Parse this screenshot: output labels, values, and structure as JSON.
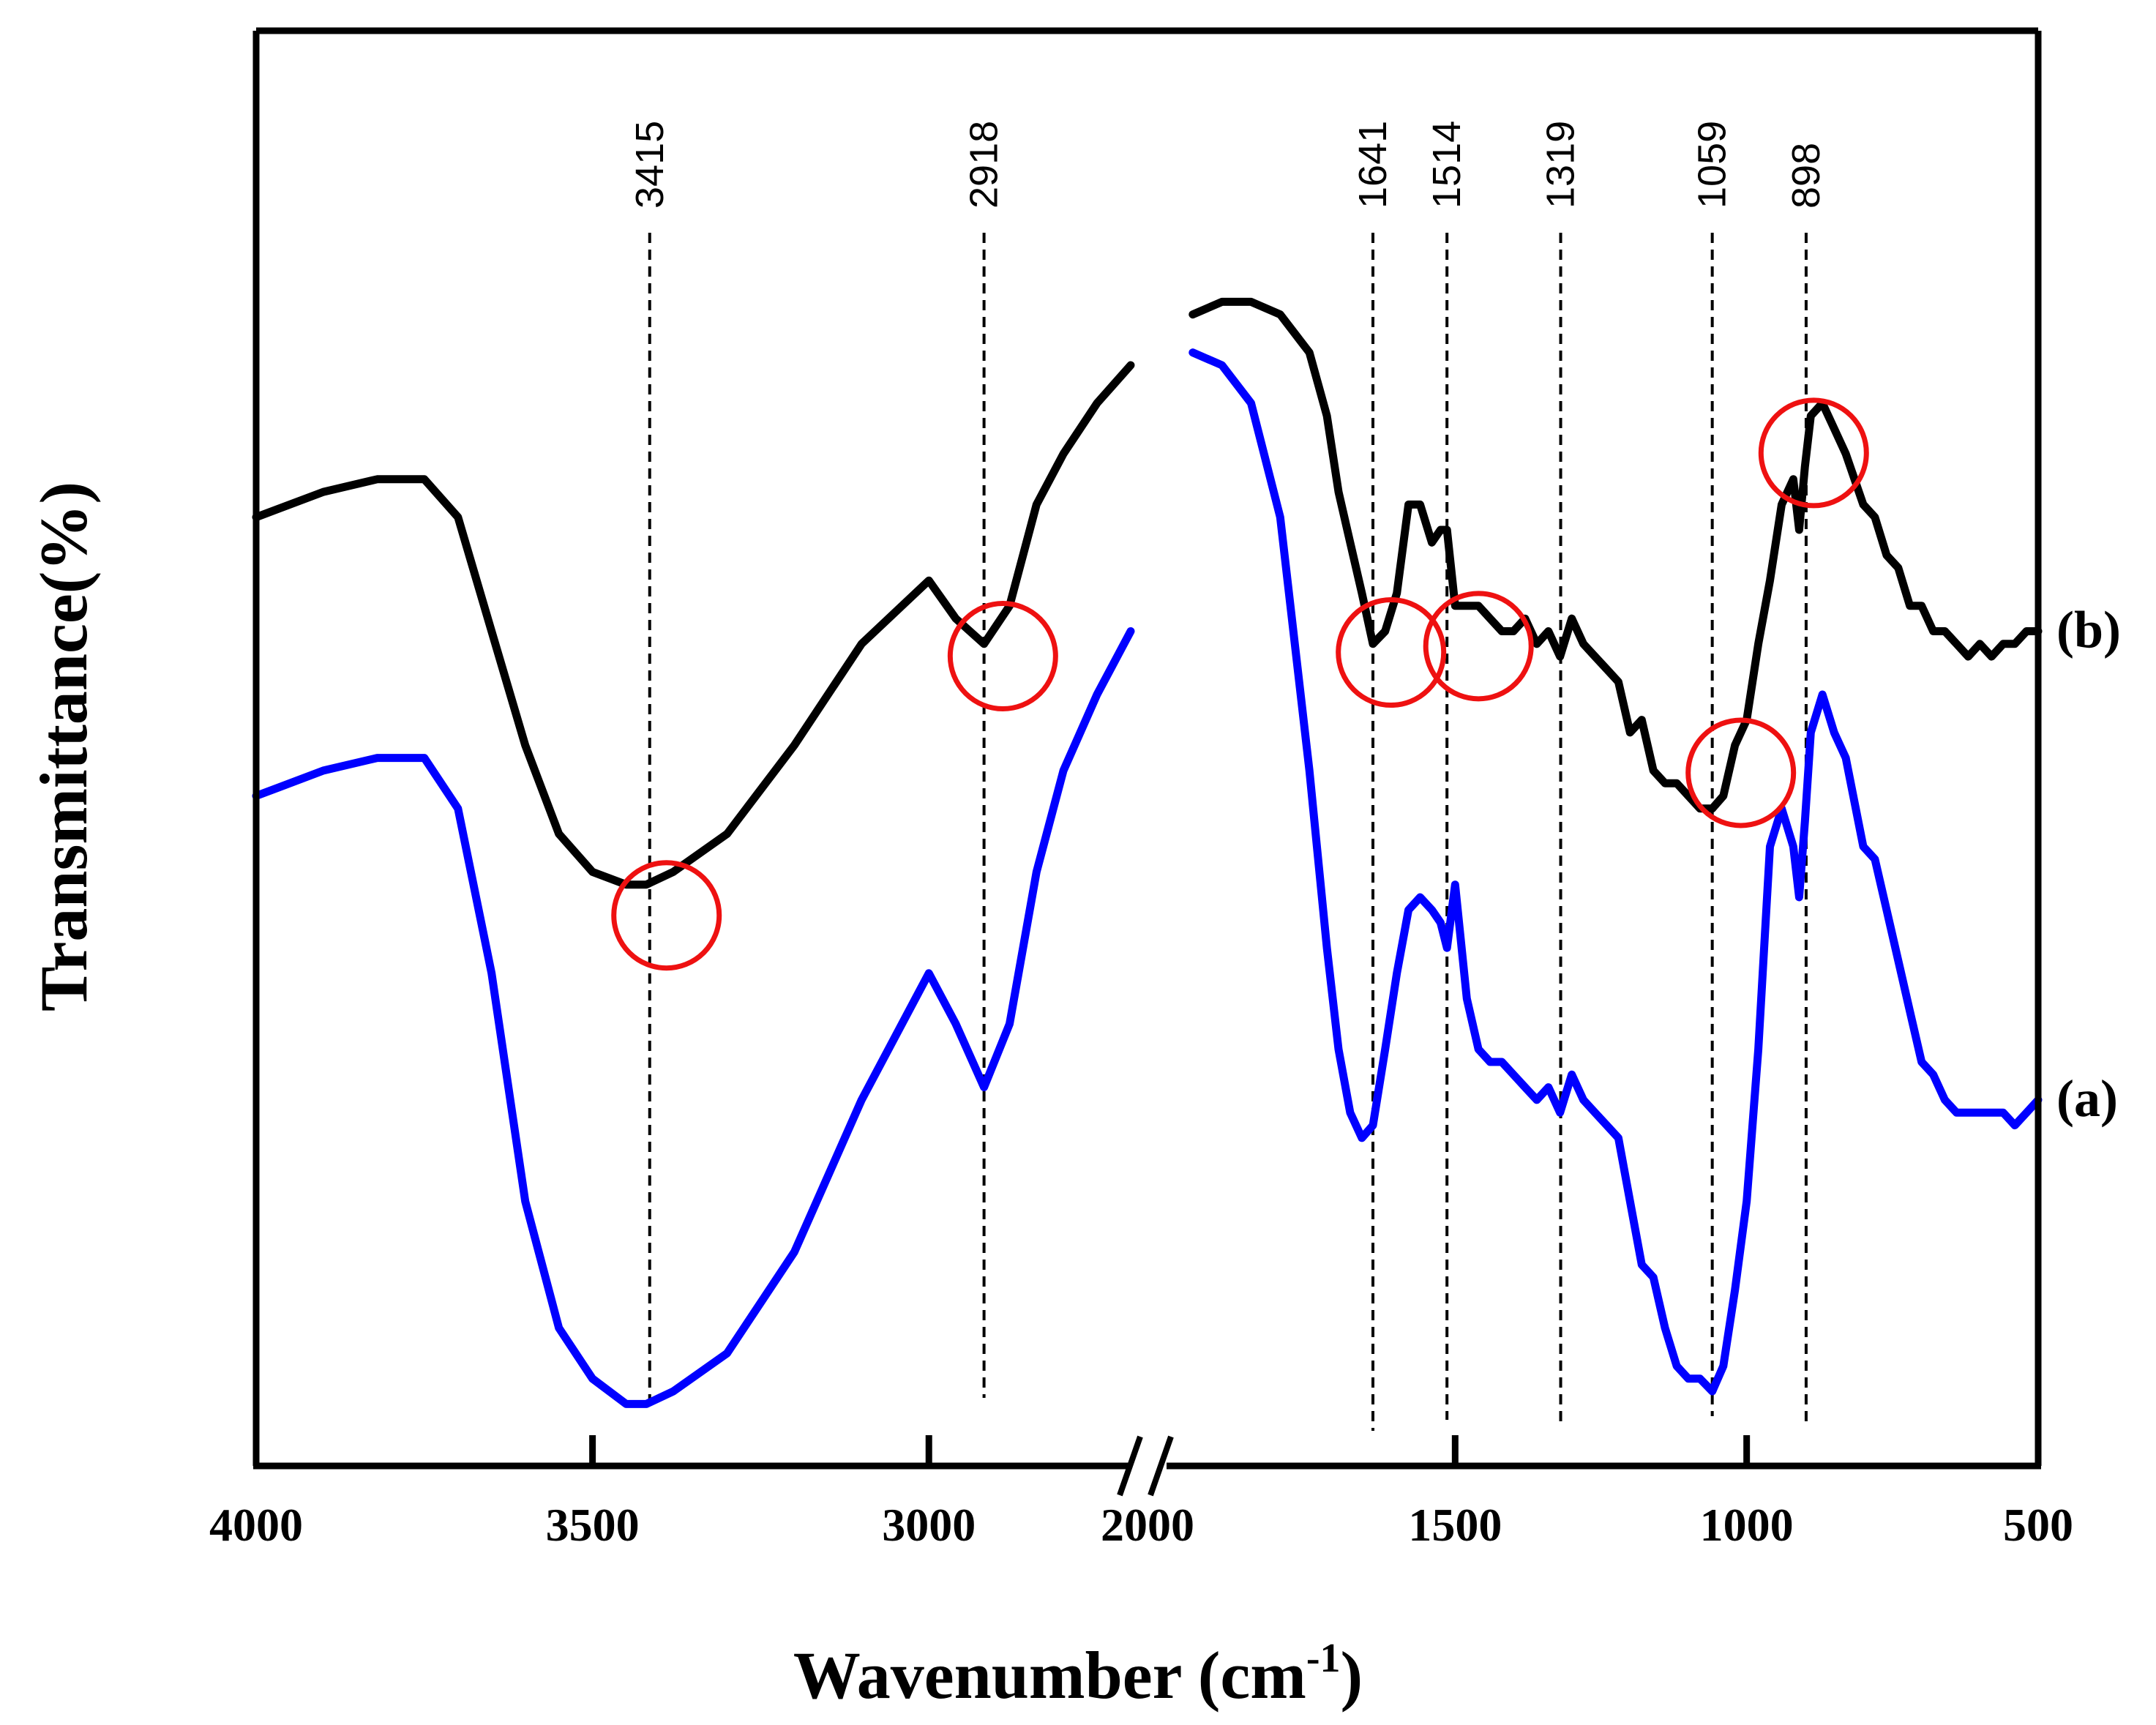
{
  "chart_data": {
    "type": "line",
    "title": "",
    "xlabel": "Wavenumber (cm",
    "xlabel_superscript": "-1",
    "xlabel_suffix": ")",
    "ylabel": "Transmittance(%)",
    "x_reversed": true,
    "x_break": [
      2000,
      2700
    ],
    "xlim": [
      4000,
      500
    ],
    "ylim": [
      0,
      100
    ],
    "grid": false,
    "x_ticks": [
      {
        "value": 4000,
        "label": "4000"
      },
      {
        "value": 3500,
        "label": "3500"
      },
      {
        "value": 3000,
        "label": "3000"
      },
      {
        "value": 2000,
        "label": "2000"
      },
      {
        "value": 1500,
        "label": "1500"
      },
      {
        "value": 1000,
        "label": "1000"
      },
      {
        "value": 500,
        "label": "500"
      }
    ],
    "peaks": [
      {
        "x": 3415,
        "label": "3415"
      },
      {
        "x": 2918,
        "label": "2918"
      },
      {
        "x": 1641,
        "label": "1641"
      },
      {
        "x": 1514,
        "label": "1514"
      },
      {
        "x": 1319,
        "label": "1319"
      },
      {
        "x": 1059,
        "label": "1059"
      },
      {
        "x": 898,
        "label": "898"
      }
    ],
    "highlight_circles_x": [
      3390,
      2890,
      1610,
      1460,
      1010,
      885
    ],
    "series": [
      {
        "name": "(b)",
        "color": "#000000",
        "x": [
          4000,
          3900,
          3820,
          3750,
          3700,
          3650,
          3600,
          3550,
          3500,
          3450,
          3420,
          3380,
          3300,
          3200,
          3100,
          3000,
          2960,
          2918,
          2880,
          2840,
          2800,
          2750,
          2700,
          1950,
          1900,
          1850,
          1800,
          1750,
          1720,
          1700,
          1680,
          1660,
          1641,
          1620,
          1600,
          1580,
          1560,
          1540,
          1525,
          1514,
          1500,
          1480,
          1460,
          1440,
          1420,
          1400,
          1380,
          1360,
          1340,
          1320,
          1300,
          1280,
          1260,
          1240,
          1220,
          1200,
          1180,
          1160,
          1140,
          1120,
          1100,
          1080,
          1059,
          1040,
          1020,
          1000,
          980,
          960,
          940,
          920,
          910,
          900,
          890,
          870,
          850,
          830,
          800,
          780,
          760,
          740,
          720,
          700,
          680,
          660,
          640,
          620,
          600,
          580,
          560,
          540,
          520,
          500
        ],
        "y": [
          72,
          74,
          75,
          75,
          72,
          63,
          54,
          47,
          44,
          43,
          43,
          44,
          47,
          54,
          62,
          67,
          64,
          62,
          65,
          73,
          77,
          81,
          84,
          88,
          89,
          89,
          88,
          85,
          80,
          74,
          70,
          66,
          62,
          63,
          66,
          73,
          73,
          70,
          71,
          71,
          65,
          65,
          65,
          64,
          63,
          63,
          64,
          62,
          63,
          61,
          64,
          62,
          61,
          60,
          59,
          55,
          56,
          52,
          51,
          51,
          50,
          49,
          49,
          50,
          54,
          56,
          62,
          67,
          73,
          75,
          71,
          76,
          80,
          81,
          79,
          77,
          73,
          72,
          69,
          68,
          65,
          65,
          63,
          63,
          62,
          61,
          62,
          61,
          62,
          62,
          63,
          63
        ]
      },
      {
        "name": "(a)",
        "color": "#0000ff",
        "x": [
          4000,
          3900,
          3820,
          3750,
          3700,
          3650,
          3600,
          3550,
          3500,
          3450,
          3420,
          3380,
          3300,
          3200,
          3100,
          3000,
          2960,
          2918,
          2880,
          2840,
          2800,
          2750,
          2700,
          1950,
          1900,
          1850,
          1800,
          1750,
          1720,
          1700,
          1680,
          1660,
          1641,
          1620,
          1600,
          1580,
          1560,
          1540,
          1525,
          1514,
          1500,
          1480,
          1460,
          1440,
          1420,
          1400,
          1380,
          1360,
          1340,
          1320,
          1300,
          1280,
          1260,
          1240,
          1220,
          1200,
          1180,
          1160,
          1140,
          1120,
          1100,
          1080,
          1059,
          1040,
          1020,
          1000,
          980,
          960,
          940,
          920,
          910,
          900,
          890,
          870,
          850,
          830,
          800,
          780,
          760,
          740,
          720,
          700,
          680,
          660,
          640,
          620,
          600,
          580,
          560,
          540,
          520,
          500
        ],
        "y": [
          50,
          52,
          53,
          53,
          49,
          36,
          18,
          8,
          4,
          2,
          2,
          3,
          6,
          14,
          26,
          36,
          32,
          27,
          32,
          44,
          52,
          58,
          63,
          85,
          84,
          81,
          72,
          52,
          38,
          30,
          25,
          23,
          24,
          30,
          36,
          41,
          42,
          41,
          40,
          38,
          43,
          34,
          30,
          29,
          29,
          28,
          27,
          26,
          27,
          25,
          28,
          26,
          25,
          24,
          23,
          18,
          13,
          12,
          8,
          5,
          4,
          4,
          3,
          5,
          11,
          18,
          30,
          46,
          49,
          46,
          42,
          48,
          55,
          58,
          55,
          53,
          46,
          45,
          41,
          37,
          33,
          29,
          28,
          26,
          25,
          25,
          25,
          25,
          25,
          24,
          25,
          26
        ]
      }
    ]
  }
}
